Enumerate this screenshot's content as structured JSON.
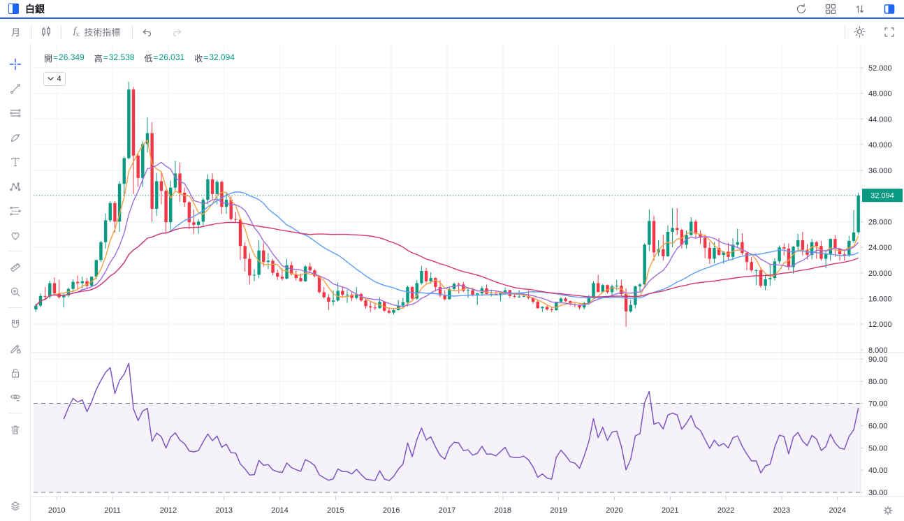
{
  "topbar": {
    "title": "白銀",
    "icons": [
      "refresh-icon",
      "layout-grid-icon",
      "sort-icon",
      "panel-right-icon"
    ]
  },
  "toolbar": {
    "interval_label": "月",
    "fx_f": "f",
    "fx_x": "x",
    "indicators_label": "技術指標",
    "icons": [
      "candlestick-style-icon",
      "undo-icon",
      "redo-icon",
      "settings-gear-icon",
      "fullscreen-icon"
    ]
  },
  "sidebar": {
    "tools": [
      "crosshair",
      "trend-line",
      "fib-lines",
      "brush",
      "text",
      "xabcd-pattern",
      "projection",
      "favorites-heart",
      "ruler",
      "zoom-in",
      "magnet",
      "draw-lock",
      "lock-all",
      "hide-all",
      "remove-all",
      "object-tree-layers"
    ]
  },
  "legend": {
    "eq": "=",
    "collapsed_count": "4",
    "items": [
      {
        "label": "開",
        "value": "26.349"
      },
      {
        "label": "高",
        "value": "32.538"
      },
      {
        "label": "低",
        "value": "26.031"
      },
      {
        "label": "收",
        "value": "32.094"
      }
    ]
  },
  "price_axis": {
    "labels": [
      "52.000",
      "48.000",
      "44.000",
      "40.000",
      "36.000",
      "28.000",
      "24.000",
      "20.000",
      "16.000",
      "12.000",
      "8.000"
    ],
    "last_price_label": "32.094"
  },
  "time_axis": {
    "labels": [
      "2010",
      "2011",
      "2012",
      "2013",
      "2014",
      "2015",
      "2016",
      "2017",
      "2018",
      "2019",
      "2020",
      "2021",
      "2022",
      "2023",
      "2024"
    ]
  },
  "colors": {
    "accent_blue": "#2962ff",
    "up": "#089981",
    "down": "#f23645",
    "grid": "#f0f2f6",
    "separator": "#e0e3eb",
    "axis_text": "#2a2e39",
    "dashed_level": "#787b86",
    "band_fill": "rgba(126,87,194,0.08)",
    "rsi_line": "#7e57c2",
    "last_price_bg": "#089981"
  },
  "chart_data": {
    "type": "candlestick",
    "symbol": "白銀",
    "interval": "月",
    "start_month": "2009-08",
    "first_year_offset": 5,
    "ylim": [
      7.4,
      55.8
    ],
    "price_ticks": [
      8,
      12,
      16,
      20,
      24,
      28,
      32,
      36,
      40,
      44,
      48,
      52
    ],
    "last": {
      "open": 26.349,
      "high": 32.538,
      "low": 26.031,
      "close": 32.094
    },
    "overlays": [
      {
        "name": "MA5",
        "period": 5,
        "color": "#f2a144"
      },
      {
        "name": "MA10",
        "period": 10,
        "color": "#9d6ddb"
      },
      {
        "name": "MA30",
        "period": 30,
        "color": "#5b9cf6"
      },
      {
        "name": "MA60",
        "period": 60,
        "color": "#d5356e"
      }
    ],
    "lower_panel": {
      "name": "RSI",
      "period": 14,
      "color": "#7e57c2",
      "band": [
        30,
        70
      ],
      "ticks": [
        "90.00",
        "80.00",
        "70.00",
        "60.00",
        "50.00",
        "40.00",
        "30.00"
      ],
      "ylim": [
        27,
        93
      ]
    },
    "candles": [
      [
        14.3,
        15.2,
        13.9,
        14.9
      ],
      [
        14.9,
        16.8,
        14.6,
        16.4
      ],
      [
        16.4,
        17.8,
        15.8,
        16.3
      ],
      [
        16.3,
        18.8,
        16.0,
        18.4
      ],
      [
        18.4,
        19.3,
        16.5,
        16.8
      ],
      [
        16.8,
        18.9,
        16.0,
        16.2
      ],
      [
        16.2,
        16.8,
        14.6,
        16.5
      ],
      [
        16.5,
        17.7,
        16.2,
        17.5
      ],
      [
        17.5,
        19.0,
        17.1,
        18.6
      ],
      [
        18.6,
        19.6,
        17.4,
        18.4
      ],
      [
        18.4,
        19.4,
        17.6,
        18.7
      ],
      [
        18.7,
        19.2,
        17.5,
        18.0
      ],
      [
        18.0,
        19.5,
        17.9,
        19.4
      ],
      [
        19.4,
        22.1,
        19.0,
        22.0
      ],
      [
        22.0,
        25.0,
        21.7,
        24.8
      ],
      [
        24.8,
        29.3,
        23.8,
        28.2
      ],
      [
        28.2,
        31.2,
        27.9,
        30.9
      ],
      [
        30.9,
        31.2,
        26.3,
        28.0
      ],
      [
        28.0,
        34.3,
        26.4,
        33.9
      ],
      [
        33.9,
        38.2,
        32.0,
        37.9
      ],
      [
        37.9,
        49.8,
        37.7,
        48.6
      ],
      [
        48.6,
        49.0,
        32.3,
        38.3
      ],
      [
        38.3,
        38.8,
        33.4,
        34.8
      ],
      [
        34.8,
        40.5,
        33.4,
        40.1
      ],
      [
        40.1,
        44.3,
        38.8,
        41.8
      ],
      [
        41.8,
        43.5,
        28.0,
        30.0
      ],
      [
        30.0,
        35.6,
        28.9,
        34.3
      ],
      [
        34.3,
        35.7,
        30.7,
        32.8
      ],
      [
        32.8,
        33.0,
        26.1,
        27.9
      ],
      [
        27.9,
        34.4,
        26.5,
        33.3
      ],
      [
        33.3,
        37.5,
        32.7,
        35.5
      ],
      [
        35.5,
        37.2,
        31.1,
        32.5
      ],
      [
        32.5,
        33.3,
        30.3,
        31.0
      ],
      [
        31.0,
        31.2,
        26.8,
        27.9
      ],
      [
        27.9,
        29.9,
        26.1,
        27.5
      ],
      [
        27.5,
        28.4,
        26.1,
        28.0
      ],
      [
        28.0,
        31.7,
        27.2,
        31.4
      ],
      [
        31.4,
        35.4,
        30.7,
        34.6
      ],
      [
        34.6,
        35.5,
        31.5,
        32.3
      ],
      [
        32.3,
        34.5,
        30.7,
        34.2
      ],
      [
        34.2,
        34.4,
        29.2,
        30.3
      ],
      [
        30.3,
        32.5,
        29.2,
        31.4
      ],
      [
        31.4,
        32.0,
        28.2,
        28.4
      ],
      [
        28.4,
        29.5,
        27.9,
        28.3
      ],
      [
        28.3,
        28.4,
        22.0,
        24.2
      ],
      [
        24.2,
        24.8,
        20.2,
        22.2
      ],
      [
        22.2,
        23.1,
        18.2,
        19.6
      ],
      [
        19.6,
        20.6,
        18.7,
        19.7
      ],
      [
        19.7,
        25.1,
        19.2,
        23.5
      ],
      [
        23.5,
        24.7,
        21.0,
        21.7
      ],
      [
        21.7,
        23.1,
        20.6,
        21.9
      ],
      [
        21.9,
        22.2,
        19.6,
        20.0
      ],
      [
        20.0,
        20.5,
        18.9,
        19.4
      ],
      [
        19.4,
        20.7,
        18.8,
        19.1
      ],
      [
        19.1,
        22.2,
        19.0,
        21.2
      ],
      [
        21.2,
        21.8,
        19.6,
        19.8
      ],
      [
        19.8,
        20.4,
        18.8,
        19.2
      ],
      [
        19.2,
        19.9,
        18.6,
        18.7
      ],
      [
        18.7,
        21.2,
        18.6,
        21.0
      ],
      [
        21.0,
        21.6,
        20.1,
        20.4
      ],
      [
        20.4,
        20.6,
        19.3,
        19.5
      ],
      [
        19.5,
        19.6,
        16.8,
        17.0
      ],
      [
        17.0,
        17.8,
        16.0,
        16.2
      ],
      [
        16.2,
        16.7,
        14.2,
        15.5
      ],
      [
        15.5,
        17.3,
        14.9,
        15.7
      ],
      [
        15.7,
        18.5,
        15.5,
        17.2
      ],
      [
        17.2,
        17.9,
        16.1,
        16.6
      ],
      [
        16.6,
        17.4,
        15.3,
        16.6
      ],
      [
        16.6,
        17.1,
        15.6,
        16.1
      ],
      [
        16.1,
        17.8,
        15.9,
        16.7
      ],
      [
        16.7,
        16.9,
        15.5,
        15.7
      ],
      [
        15.7,
        16.0,
        14.4,
        14.8
      ],
      [
        14.8,
        15.6,
        13.9,
        14.6
      ],
      [
        14.6,
        15.3,
        14.2,
        14.5
      ],
      [
        14.5,
        16.2,
        14.4,
        15.5
      ],
      [
        15.5,
        15.6,
        13.9,
        14.1
      ],
      [
        14.1,
        14.6,
        13.6,
        13.8
      ],
      [
        13.8,
        14.4,
        13.5,
        14.2
      ],
      [
        14.2,
        15.8,
        14.1,
        14.9
      ],
      [
        14.9,
        16.1,
        14.6,
        15.4
      ],
      [
        15.4,
        18.0,
        14.8,
        17.8
      ],
      [
        17.8,
        17.9,
        15.8,
        16.0
      ],
      [
        16.0,
        18.9,
        15.8,
        18.4
      ],
      [
        18.4,
        21.1,
        18.2,
        20.3
      ],
      [
        20.3,
        20.8,
        18.4,
        18.7
      ],
      [
        18.7,
        20.1,
        18.3,
        19.2
      ],
      [
        19.2,
        19.3,
        17.1,
        17.8
      ],
      [
        17.8,
        18.9,
        16.2,
        16.5
      ],
      [
        16.5,
        17.3,
        15.7,
        15.9
      ],
      [
        15.9,
        17.7,
        15.8,
        17.5
      ],
      [
        17.5,
        18.5,
        17.2,
        18.3
      ],
      [
        18.3,
        18.5,
        16.8,
        18.2
      ],
      [
        18.2,
        18.6,
        17.0,
        17.2
      ],
      [
        17.2,
        17.7,
        16.1,
        17.3
      ],
      [
        17.3,
        17.7,
        16.3,
        16.6
      ],
      [
        16.6,
        16.9,
        15.0,
        16.8
      ],
      [
        16.8,
        17.9,
        16.4,
        17.6
      ],
      [
        17.6,
        18.2,
        16.6,
        16.7
      ],
      [
        16.7,
        17.4,
        16.3,
        16.7
      ],
      [
        16.7,
        17.3,
        16.5,
        16.5
      ],
      [
        16.5,
        17.0,
        15.6,
        16.9
      ],
      [
        16.9,
        17.7,
        16.8,
        17.3
      ],
      [
        17.3,
        17.4,
        16.1,
        16.4
      ],
      [
        16.4,
        16.8,
        16.1,
        16.3
      ],
      [
        16.3,
        17.3,
        16.1,
        16.3
      ],
      [
        16.3,
        16.9,
        16.2,
        16.4
      ],
      [
        16.4,
        17.3,
        15.9,
        16.1
      ],
      [
        16.1,
        16.2,
        15.2,
        15.5
      ],
      [
        15.5,
        15.7,
        14.4,
        14.5
      ],
      [
        14.5,
        14.8,
        13.9,
        14.7
      ],
      [
        14.7,
        14.9,
        14.1,
        14.3
      ],
      [
        14.3,
        14.6,
        13.9,
        14.2
      ],
      [
        14.2,
        15.5,
        14.1,
        15.5
      ],
      [
        15.5,
        16.2,
        15.3,
        16.0
      ],
      [
        16.0,
        16.2,
        15.5,
        15.6
      ],
      [
        15.6,
        15.7,
        14.9,
        15.1
      ],
      [
        15.1,
        15.3,
        14.6,
        15.0
      ],
      [
        15.0,
        15.1,
        14.3,
        14.6
      ],
      [
        14.6,
        15.5,
        14.3,
        15.3
      ],
      [
        15.3,
        16.6,
        15.0,
        16.3
      ],
      [
        16.3,
        18.7,
        16.0,
        18.4
      ],
      [
        18.4,
        19.7,
        17.5,
        17.0
      ],
      [
        17.0,
        18.3,
        16.9,
        18.1
      ],
      [
        18.1,
        18.2,
        16.8,
        17.0
      ],
      [
        17.0,
        18.2,
        16.5,
        17.9
      ],
      [
        17.9,
        18.9,
        17.3,
        18.0
      ],
      [
        18.0,
        18.9,
        16.4,
        16.7
      ],
      [
        16.7,
        17.6,
        11.6,
        14.0
      ],
      [
        14.0,
        15.8,
        13.8,
        15.0
      ],
      [
        15.0,
        18.0,
        14.5,
        17.9
      ],
      [
        17.9,
        18.4,
        17.0,
        18.2
      ],
      [
        18.2,
        24.6,
        17.9,
        24.4
      ],
      [
        24.4,
        29.9,
        23.4,
        28.1
      ],
      [
        28.1,
        28.9,
        21.9,
        23.2
      ],
      [
        23.2,
        25.1,
        22.6,
        23.7
      ],
      [
        23.7,
        26.0,
        21.9,
        22.6
      ],
      [
        22.6,
        27.4,
        22.5,
        26.4
      ],
      [
        26.4,
        30.1,
        24.0,
        27.0
      ],
      [
        27.0,
        30.1,
        25.9,
        26.7
      ],
      [
        26.7,
        26.9,
        23.8,
        24.4
      ],
      [
        24.4,
        26.6,
        23.8,
        25.9
      ],
      [
        25.9,
        28.7,
        25.8,
        28.0
      ],
      [
        28.0,
        28.3,
        25.5,
        26.1
      ],
      [
        26.1,
        26.6,
        24.5,
        25.5
      ],
      [
        25.5,
        26.0,
        22.3,
        23.9
      ],
      [
        23.9,
        24.8,
        21.4,
        22.2
      ],
      [
        22.2,
        24.8,
        21.5,
        23.9
      ],
      [
        23.9,
        25.4,
        22.7,
        22.8
      ],
      [
        22.8,
        23.4,
        21.4,
        23.3
      ],
      [
        23.3,
        24.7,
        21.9,
        22.5
      ],
      [
        22.5,
        25.4,
        22.0,
        24.4
      ],
      [
        24.4,
        26.9,
        24.0,
        24.8
      ],
      [
        24.8,
        26.2,
        22.8,
        23.1
      ],
      [
        23.1,
        23.3,
        20.4,
        21.7
      ],
      [
        21.7,
        22.5,
        20.2,
        20.4
      ],
      [
        20.4,
        20.6,
        18.1,
        20.4
      ],
      [
        20.4,
        20.9,
        17.7,
        18.0
      ],
      [
        18.0,
        19.7,
        17.3,
        19.0
      ],
      [
        19.0,
        21.3,
        18.0,
        19.2
      ],
      [
        19.2,
        22.3,
        18.8,
        21.8
      ],
      [
        21.8,
        24.3,
        21.4,
        24.0
      ],
      [
        24.0,
        24.6,
        22.7,
        23.8
      ],
      [
        23.8,
        24.6,
        20.4,
        20.9
      ],
      [
        20.9,
        24.2,
        19.9,
        24.1
      ],
      [
        24.1,
        26.1,
        23.3,
        25.1
      ],
      [
        25.1,
        26.4,
        22.7,
        23.6
      ],
      [
        23.6,
        24.5,
        22.1,
        22.8
      ],
      [
        22.8,
        25.3,
        22.1,
        24.8
      ],
      [
        24.8,
        25.0,
        22.2,
        24.2
      ],
      [
        24.2,
        25.0,
        21.9,
        22.2
      ],
      [
        22.2,
        23.6,
        20.7,
        22.9
      ],
      [
        22.9,
        25.4,
        21.9,
        25.3
      ],
      [
        25.3,
        25.9,
        22.5,
        23.8
      ],
      [
        23.8,
        23.9,
        21.9,
        22.9
      ],
      [
        22.9,
        23.4,
        21.9,
        22.7
      ],
      [
        22.7,
        25.8,
        22.5,
        25.0
      ],
      [
        25.0,
        29.8,
        24.7,
        26.3
      ],
      [
        26.349,
        32.538,
        26.031,
        32.094
      ]
    ]
  }
}
